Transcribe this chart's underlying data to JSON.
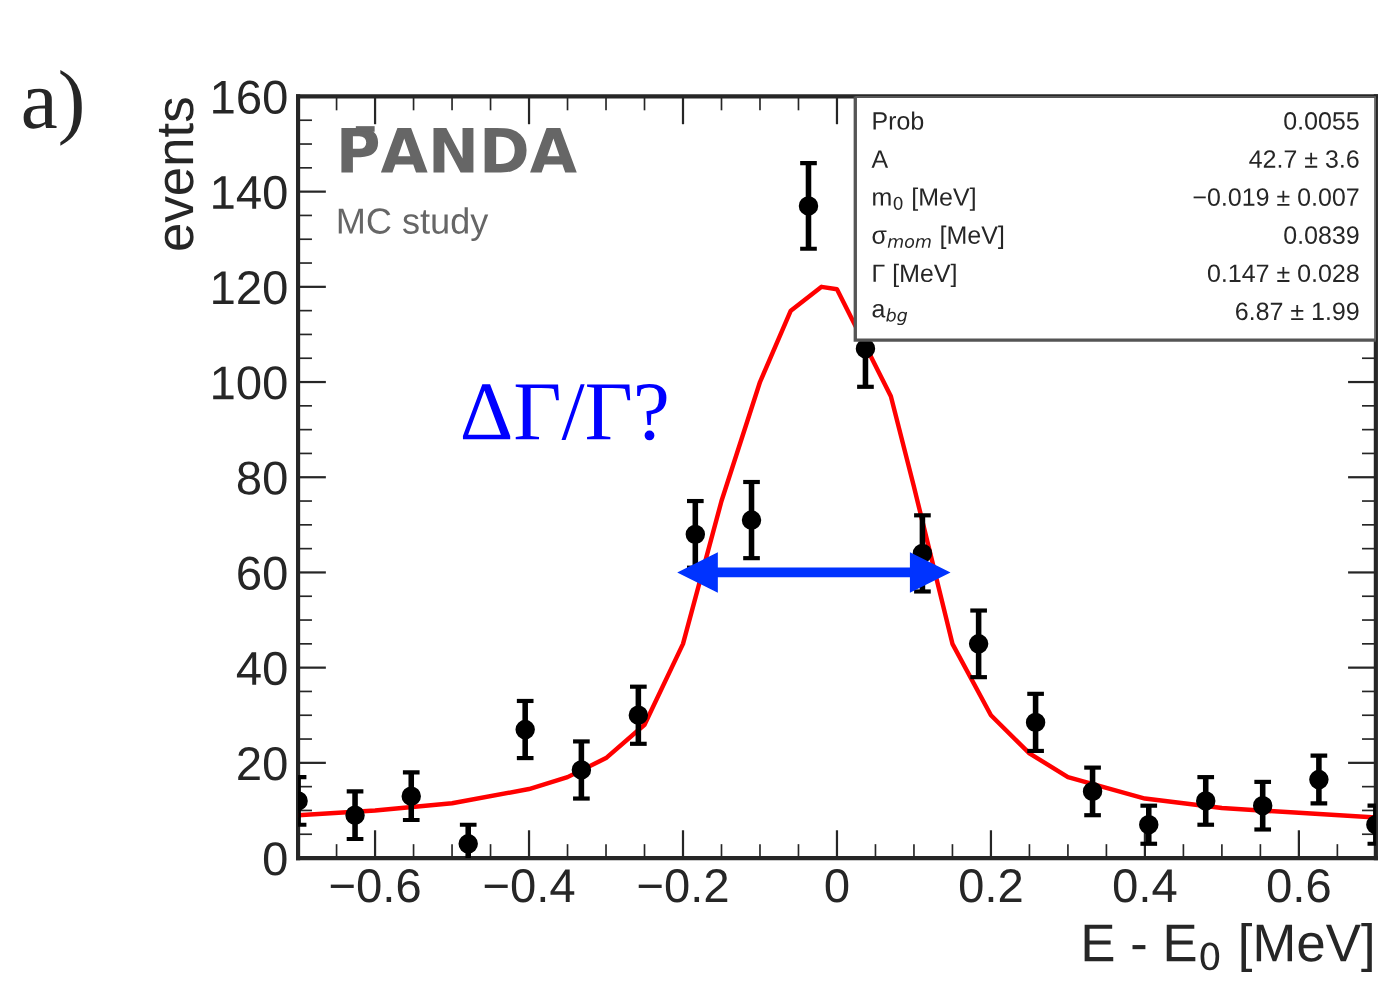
{
  "chart_data": {
    "type": "scatter",
    "xlabel": "E - E$_{0}$ [MeV]",
    "ylabel": "events",
    "xlim": [
      -0.7,
      0.7
    ],
    "ylim": [
      0,
      160
    ],
    "xticks": [
      {
        "value": -0.6,
        "label": "−0.6"
      },
      {
        "value": -0.4,
        "label": "−0.4"
      },
      {
        "value": -0.2,
        "label": "−0.2"
      },
      0,
      0.2,
      0.4,
      0.6
    ],
    "yticks": [
      0,
      20,
      40,
      60,
      80,
      100,
      120,
      140,
      160
    ],
    "grid": false,
    "legend": false,
    "series": [
      {
        "marker": "circle",
        "color": "#000000",
        "x": [
          -0.7,
          -0.626,
          -0.553,
          -0.479,
          -0.405,
          -0.332,
          -0.258,
          -0.184,
          -0.111,
          -0.037,
          0.037,
          0.111,
          0.184,
          0.258,
          0.332,
          0.405,
          0.479,
          0.553,
          0.626,
          0.7
        ],
        "values": [
          12,
          9,
          13,
          3,
          27,
          18.5,
          30,
          68,
          71,
          137,
          107,
          64,
          45,
          28.5,
          14,
          7,
          12,
          11,
          16.5,
          7
        ],
        "errors": [
          5,
          5,
          5,
          4,
          6,
          6,
          6,
          7,
          8,
          9,
          8,
          8,
          7,
          6,
          5,
          4,
          5,
          5,
          5,
          4
        ]
      },
      {
        "type": "line",
        "color": "#ff0000",
        "x": [
          -0.7,
          -0.6,
          -0.5,
          -0.4,
          -0.35,
          -0.3,
          -0.25,
          -0.2,
          -0.15,
          -0.1,
          -0.06,
          -0.02,
          0.0,
          0.07,
          0.1,
          0.15,
          0.2,
          0.25,
          0.3,
          0.4,
          0.5,
          0.6,
          0.7
        ],
        "values": [
          9,
          10,
          11.5,
          14.5,
          17,
          21,
          28,
          45,
          75,
          100,
          115,
          120,
          119.5,
          97,
          78,
          45,
          30,
          22,
          17,
          12.5,
          10.5,
          9.5,
          8.5
        ]
      },
      {
        "type": "line",
        "marker": "triangle",
        "color": "#0033ff",
        "x": [
          -0.18,
          0.12
        ],
        "values": [
          60,
          60
        ]
      }
    ],
    "annotations": [
      "a)",
      "P̄ANDA",
      "MC study",
      "ΔΓ/Γ?",
      "Prob",
      "0.0055",
      "A",
      "42.7 ± 3.6",
      "m$_{0}$ [MeV]",
      "−0.019 ± 0.007",
      "σ$_{mom}$ [MeV]",
      "0.0839",
      "Γ [MeV]",
      "0.147 ± 0.028",
      "a$_{bg}$",
      "6.87 ± 1.99"
    ]
  }
}
